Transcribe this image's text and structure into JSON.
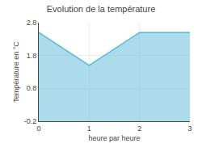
{
  "chart_data": {
    "type": "area",
    "title": "Evolution de la température",
    "xlabel": "heure par heure",
    "ylabel": "Température en °C",
    "x": [
      0,
      1,
      2,
      3
    ],
    "values": [
      2.5,
      1.5,
      2.5,
      2.5
    ],
    "color": "#5ab8d8",
    "xlim": [
      0,
      3
    ],
    "xticks": [
      0,
      1,
      2,
      3
    ],
    "ylim": [
      -0.2,
      2.8
    ],
    "yticks": [
      -0.2,
      0.8,
      1.8,
      2.8
    ],
    "grid": true
  }
}
